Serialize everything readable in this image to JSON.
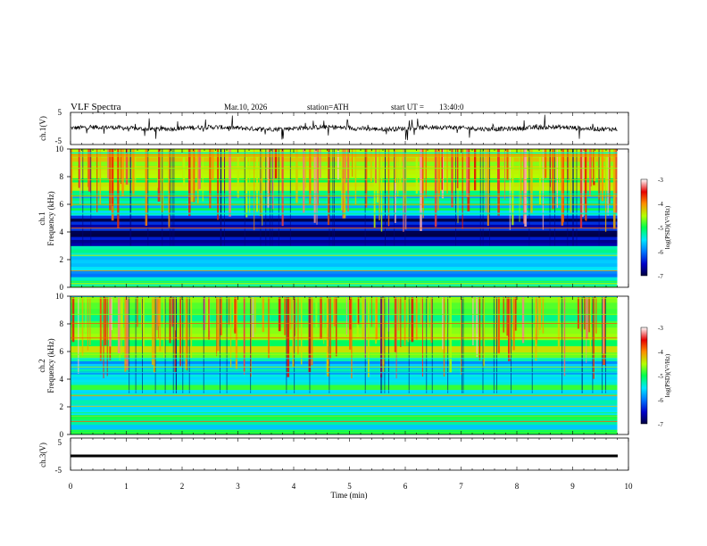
{
  "header": {
    "title": "VLF Spectra",
    "date": "Mar.10, 2026",
    "station": "station=ATH",
    "start": "start UT =",
    "start_time": "13:40:0"
  },
  "colors": {
    "axis": "#000000",
    "colormap": [
      "#00007a",
      "#0000ff",
      "#00c8ff",
      "#00ffff",
      "#00ff00",
      "#ffff00",
      "#ff0000",
      "#ffffff"
    ]
  },
  "chart_data": [
    {
      "type": "line",
      "ylabel": "ch.1(V)",
      "yticks": [
        "5",
        "-5"
      ],
      "ylim": [
        -5,
        5
      ],
      "xlim": [
        0,
        10
      ],
      "series_description_level": 0.1,
      "grid": false
    },
    {
      "type": "heatmap",
      "ylabel": "Frequency (kHz)",
      "channel_label": "ch.1",
      "yticks": [
        "0",
        "2",
        "4",
        "6",
        "8",
        "10"
      ],
      "ylim": [
        0,
        10
      ],
      "xlim": [
        0,
        9.8
      ],
      "colorbar": {
        "label": "log(PSD)(V²/Hz)",
        "ticks": [
          "-3",
          "-4",
          "-5",
          "-6",
          "-7"
        ],
        "range": [
          -7,
          -3
        ]
      },
      "bands": [
        {
          "f_low": 0,
          "f_high": 0.5,
          "level": -5.0
        },
        {
          "f_low": 0.5,
          "f_high": 3.0,
          "level": -5.6
        },
        {
          "f_low": 3.0,
          "f_high": 5.2,
          "level": -6.6
        },
        {
          "f_low": 5.2,
          "f_high": 7.0,
          "level": -5.4
        },
        {
          "f_low": 7.0,
          "f_high": 10,
          "level": -4.7
        }
      ]
    },
    {
      "type": "heatmap",
      "ylabel": "Frequency (kHz)",
      "channel_label": "ch.2",
      "yticks": [
        "0",
        "2",
        "4",
        "6",
        "8",
        "10"
      ],
      "ylim": [
        0,
        10
      ],
      "xlim": [
        0,
        9.8
      ],
      "colorbar": {
        "label": "log(PSD)(V²/Hz)",
        "ticks": [
          "-3",
          "-4",
          "-5",
          "-6",
          "-7"
        ],
        "range": [
          -7,
          -3
        ]
      },
      "bands": [
        {
          "f_low": 0,
          "f_high": 3.6,
          "level": -5.3
        },
        {
          "f_low": 3.6,
          "f_high": 5.5,
          "level": -5.7
        },
        {
          "f_low": 5.5,
          "f_high": 10,
          "level": -4.8
        }
      ]
    },
    {
      "type": "line",
      "ylabel": "ch.3(V)",
      "yticks": [
        "5",
        "-5"
      ],
      "ylim": [
        -5,
        5
      ],
      "xlim": [
        0,
        10
      ],
      "constant_value": 0,
      "grid": false
    }
  ],
  "xaxis": {
    "label": "Time (min)",
    "ticks": [
      "0",
      "1",
      "2",
      "3",
      "4",
      "5",
      "6",
      "7",
      "8",
      "9",
      "10"
    ],
    "xlim": [
      0,
      10
    ]
  }
}
